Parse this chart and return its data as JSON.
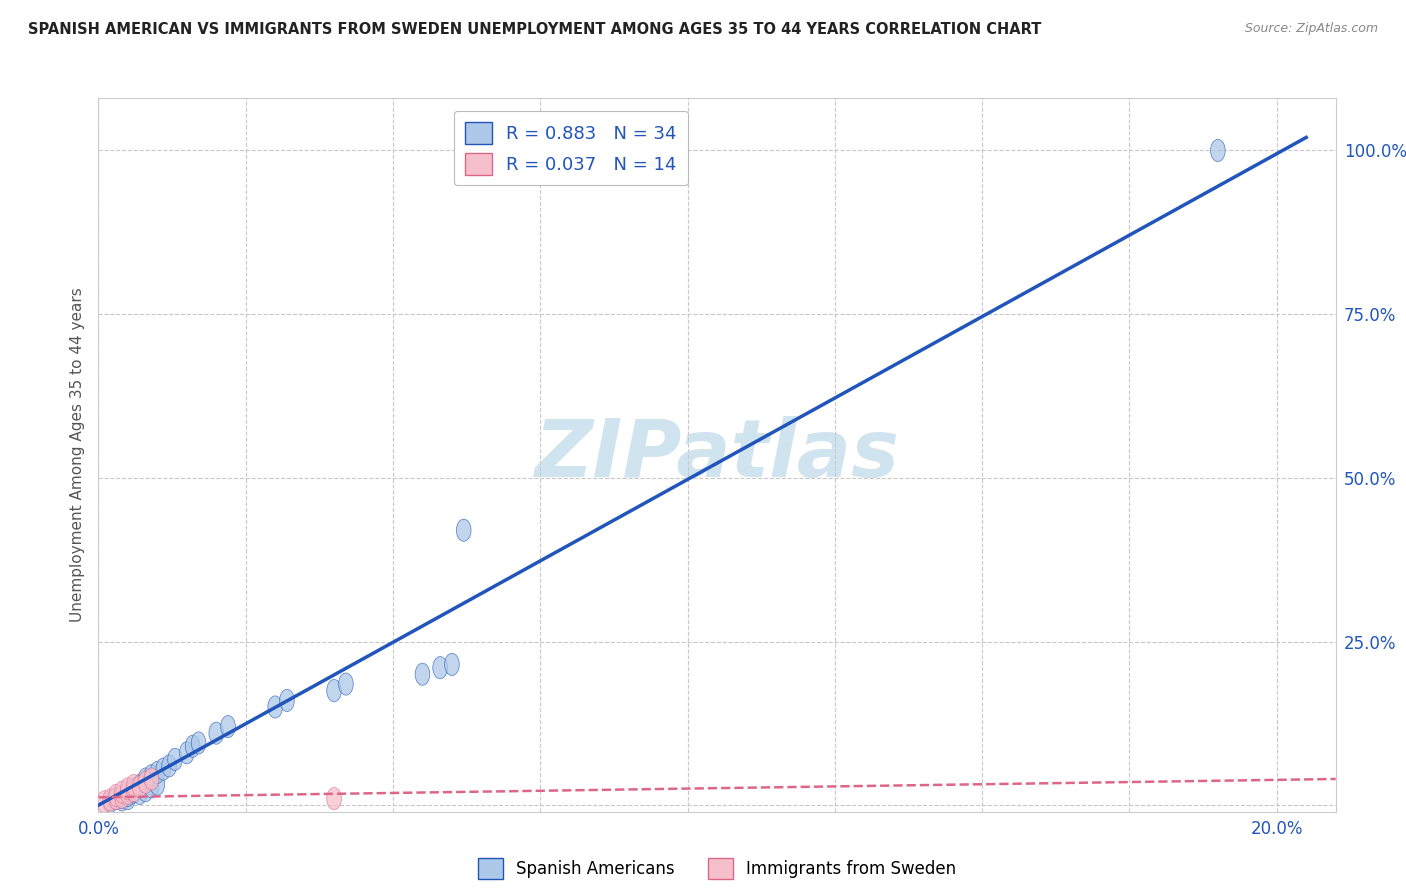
{
  "title": "SPANISH AMERICAN VS IMMIGRANTS FROM SWEDEN UNEMPLOYMENT AMONG AGES 35 TO 44 YEARS CORRELATION CHART",
  "source": "Source: ZipAtlas.com",
  "ylabel": "Unemployment Among Ages 35 to 44 years",
  "xlim": [
    0.0,
    0.21
  ],
  "ylim": [
    -0.01,
    1.08
  ],
  "xticks": [
    0.0,
    0.025,
    0.05,
    0.075,
    0.1,
    0.125,
    0.15,
    0.175,
    0.2
  ],
  "xtick_labels": [
    "0.0%",
    "",
    "",
    "",
    "",
    "",
    "",
    "",
    "20.0%"
  ],
  "yticks": [
    0.0,
    0.25,
    0.5,
    0.75,
    1.0
  ],
  "ytick_labels": [
    "",
    "25.0%",
    "50.0%",
    "75.0%",
    "100.0%"
  ],
  "blue_scatter_x": [
    0.002,
    0.003,
    0.004,
    0.004,
    0.005,
    0.005,
    0.006,
    0.006,
    0.007,
    0.007,
    0.008,
    0.008,
    0.008,
    0.009,
    0.009,
    0.01,
    0.01,
    0.011,
    0.012,
    0.013,
    0.015,
    0.016,
    0.017,
    0.02,
    0.022,
    0.03,
    0.032,
    0.04,
    0.042,
    0.055,
    0.058,
    0.06,
    0.062,
    0.19
  ],
  "blue_scatter_y": [
    0.005,
    0.01,
    0.008,
    0.012,
    0.01,
    0.015,
    0.02,
    0.025,
    0.018,
    0.03,
    0.022,
    0.035,
    0.04,
    0.028,
    0.045,
    0.032,
    0.05,
    0.055,
    0.06,
    0.07,
    0.08,
    0.09,
    0.095,
    0.11,
    0.12,
    0.15,
    0.16,
    0.175,
    0.185,
    0.2,
    0.21,
    0.215,
    0.42,
    1.0
  ],
  "pink_scatter_x": [
    0.001,
    0.002,
    0.003,
    0.003,
    0.004,
    0.004,
    0.005,
    0.005,
    0.006,
    0.006,
    0.007,
    0.008,
    0.009,
    0.04
  ],
  "pink_scatter_y": [
    0.005,
    0.008,
    0.01,
    0.015,
    0.012,
    0.02,
    0.018,
    0.025,
    0.022,
    0.03,
    0.028,
    0.035,
    0.04,
    0.01
  ],
  "blue_line_x": [
    0.0,
    0.205
  ],
  "blue_line_y": [
    0.0,
    1.02
  ],
  "pink_line_x": [
    0.0,
    0.21
  ],
  "pink_line_y": [
    0.012,
    0.04
  ],
  "legend_r_blue": "R = 0.883   N = 34",
  "legend_r_pink": "R = 0.037   N = 14",
  "blue_color": "#adc8e8",
  "blue_line_color": "#2255bb",
  "pink_color": "#f5c0cc",
  "pink_line_color": "#dd6688",
  "scatter_size": 200,
  "scatter_alpha": 0.75,
  "watermark": "ZIPatlas",
  "watermark_color": "#d0e4f0",
  "background_color": "#ffffff",
  "grid_color": "#c8c8c8"
}
